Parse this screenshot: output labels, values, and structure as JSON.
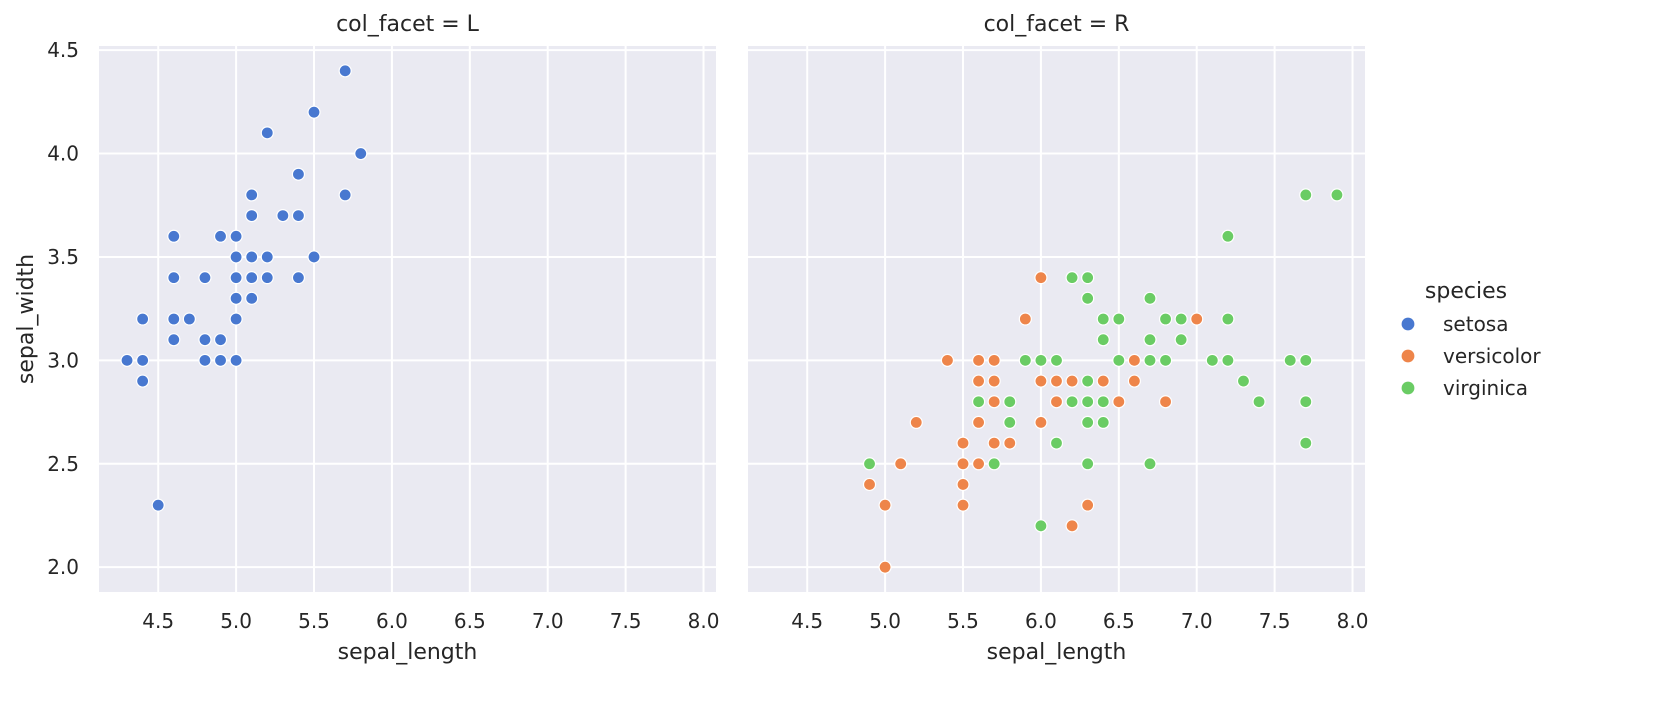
{
  "chart_data": {
    "type": "scatter",
    "xlabel": "sepal_length",
    "ylabel": "sepal_width",
    "xlim": [
      4.12,
      8.08
    ],
    "ylim": [
      1.88,
      4.52
    ],
    "xticks": [
      "4.5",
      "5.0",
      "5.5",
      "6.0",
      "6.5",
      "7.0",
      "7.5",
      "8.0"
    ],
    "xtick_values": [
      4.5,
      5.0,
      5.5,
      6.0,
      6.5,
      7.0,
      7.5,
      8.0
    ],
    "yticks": [
      "2.0",
      "2.5",
      "3.0",
      "3.5",
      "4.0",
      "4.5"
    ],
    "ytick_values": [
      2.0,
      2.5,
      3.0,
      3.5,
      4.0,
      4.5
    ],
    "grid": true,
    "legend": {
      "title": "species",
      "placement": "right",
      "entries": [
        {
          "label": "setosa",
          "color": "#4878d0"
        },
        {
          "label": "versicolor",
          "color": "#ee854a"
        },
        {
          "label": "virginica",
          "color": "#6acc64"
        }
      ]
    },
    "facets": [
      {
        "title": "col_facet = L",
        "series": [
          {
            "name": "setosa",
            "color": "#4878d0",
            "points": [
              [
                4.3,
                3.0
              ],
              [
                4.4,
                3.2
              ],
              [
                4.4,
                3.0
              ],
              [
                4.4,
                2.9
              ],
              [
                4.5,
                2.3
              ],
              [
                4.6,
                3.6
              ],
              [
                4.6,
                3.4
              ],
              [
                4.6,
                3.2
              ],
              [
                4.6,
                3.1
              ],
              [
                4.7,
                3.2
              ],
              [
                4.8,
                3.4
              ],
              [
                4.8,
                3.1
              ],
              [
                4.8,
                3.0
              ],
              [
                4.9,
                3.6
              ],
              [
                4.9,
                3.1
              ],
              [
                4.9,
                3.0
              ],
              [
                5.0,
                3.6
              ],
              [
                5.0,
                3.5
              ],
              [
                5.0,
                3.4
              ],
              [
                5.0,
                3.3
              ],
              [
                5.0,
                3.2
              ],
              [
                5.0,
                3.0
              ],
              [
                5.1,
                3.8
              ],
              [
                5.1,
                3.7
              ],
              [
                5.1,
                3.5
              ],
              [
                5.1,
                3.4
              ],
              [
                5.1,
                3.3
              ],
              [
                5.2,
                4.1
              ],
              [
                5.2,
                3.5
              ],
              [
                5.2,
                3.4
              ],
              [
                5.3,
                3.7
              ],
              [
                5.4,
                3.9
              ],
              [
                5.4,
                3.7
              ],
              [
                5.4,
                3.4
              ],
              [
                5.5,
                4.2
              ],
              [
                5.5,
                3.5
              ],
              [
                5.7,
                4.4
              ],
              [
                5.7,
                3.8
              ],
              [
                5.8,
                4.0
              ]
            ]
          }
        ]
      },
      {
        "title": "col_facet = R",
        "series": [
          {
            "name": "versicolor",
            "color": "#ee854a",
            "points": [
              [
                4.9,
                2.4
              ],
              [
                5.0,
                2.3
              ],
              [
                5.0,
                2.0
              ],
              [
                5.1,
                2.5
              ],
              [
                5.2,
                2.7
              ],
              [
                5.4,
                3.0
              ],
              [
                5.5,
                2.6
              ],
              [
                5.5,
                2.5
              ],
              [
                5.5,
                2.4
              ],
              [
                5.5,
                2.3
              ],
              [
                5.6,
                3.0
              ],
              [
                5.6,
                2.9
              ],
              [
                5.6,
                2.7
              ],
              [
                5.6,
                2.5
              ],
              [
                5.7,
                3.0
              ],
              [
                5.7,
                2.9
              ],
              [
                5.7,
                2.8
              ],
              [
                5.7,
                2.6
              ],
              [
                5.8,
                2.6
              ],
              [
                5.9,
                3.2
              ],
              [
                6.0,
                3.4
              ],
              [
                6.0,
                2.9
              ],
              [
                6.0,
                2.7
              ],
              [
                6.1,
                2.9
              ],
              [
                6.1,
                2.8
              ],
              [
                6.2,
                2.9
              ],
              [
                6.2,
                2.2
              ],
              [
                6.3,
                2.3
              ],
              [
                6.4,
                2.9
              ],
              [
                6.5,
                2.8
              ],
              [
                6.6,
                3.0
              ],
              [
                6.6,
                2.9
              ],
              [
                6.8,
                2.8
              ],
              [
                7.0,
                3.2
              ]
            ]
          },
          {
            "name": "virginica",
            "color": "#6acc64",
            "points": [
              [
                4.9,
                2.5
              ],
              [
                5.6,
                2.8
              ],
              [
                5.7,
                2.5
              ],
              [
                5.8,
                2.8
              ],
              [
                5.8,
                2.7
              ],
              [
                5.9,
                3.0
              ],
              [
                6.0,
                3.0
              ],
              [
                6.0,
                2.2
              ],
              [
                6.1,
                3.0
              ],
              [
                6.1,
                2.6
              ],
              [
                6.2,
                3.4
              ],
              [
                6.2,
                2.8
              ],
              [
                6.3,
                3.4
              ],
              [
                6.3,
                3.3
              ],
              [
                6.3,
                2.9
              ],
              [
                6.3,
                2.8
              ],
              [
                6.3,
                2.7
              ],
              [
                6.3,
                2.5
              ],
              [
                6.4,
                3.2
              ],
              [
                6.4,
                3.1
              ],
              [
                6.4,
                2.8
              ],
              [
                6.4,
                2.7
              ],
              [
                6.5,
                3.2
              ],
              [
                6.5,
                3.0
              ],
              [
                6.7,
                3.3
              ],
              [
                6.7,
                3.1
              ],
              [
                6.7,
                3.0
              ],
              [
                6.7,
                2.5
              ],
              [
                6.8,
                3.2
              ],
              [
                6.8,
                3.0
              ],
              [
                6.9,
                3.2
              ],
              [
                6.9,
                3.1
              ],
              [
                7.1,
                3.0
              ],
              [
                7.2,
                3.6
              ],
              [
                7.2,
                3.2
              ],
              [
                7.2,
                3.0
              ],
              [
                7.3,
                2.9
              ],
              [
                7.4,
                2.8
              ],
              [
                7.6,
                3.0
              ],
              [
                7.7,
                3.8
              ],
              [
                7.7,
                3.0
              ],
              [
                7.7,
                2.8
              ],
              [
                7.7,
                2.6
              ],
              [
                7.9,
                3.8
              ]
            ]
          }
        ]
      }
    ]
  }
}
